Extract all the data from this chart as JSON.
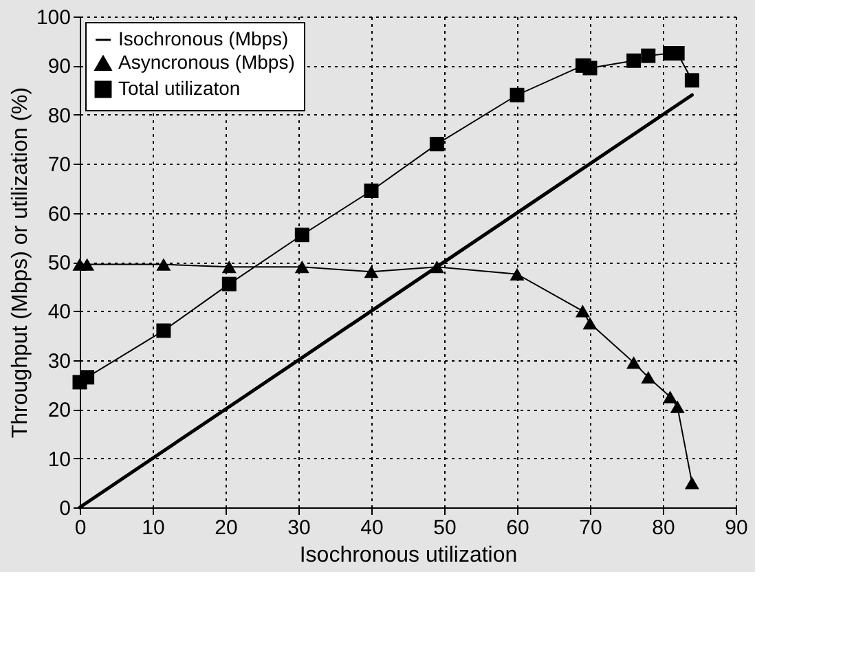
{
  "chart_data": {
    "type": "line",
    "xlabel": "Isochronous utilization",
    "ylabel": "Throughput (Mbps) or utilization (%)",
    "xlim": [
      0,
      90
    ],
    "xticks": [
      0,
      10,
      20,
      30,
      40,
      50,
      60,
      70,
      80,
      90
    ],
    "ylim": [
      0,
      100
    ],
    "yticks": [
      0,
      10,
      20,
      30,
      40,
      50,
      60,
      70,
      80,
      90,
      100
    ],
    "grid": true,
    "legend": "top left",
    "series": [
      {
        "name": "Isochronous (Mbps)",
        "color": "#000000",
        "marker": "none",
        "x": [
          0,
          20,
          40,
          60,
          84
        ],
        "values": [
          0,
          20,
          40,
          60,
          84
        ]
      },
      {
        "name": "Asyncronous (Mbps)",
        "color": "#000000",
        "marker": "triangle",
        "x": [
          0,
          1,
          11.5,
          20.5,
          30.5,
          40,
          49,
          60,
          69,
          70,
          76,
          78,
          81,
          82,
          84
        ],
        "values": [
          49.5,
          49.5,
          49.5,
          49,
          49,
          48,
          49,
          47.5,
          40,
          37.5,
          29.5,
          26.5,
          22.5,
          20.5,
          5
        ]
      },
      {
        "name": "Total utilizaton",
        "color": "#000000",
        "marker": "square",
        "x": [
          0,
          1,
          11.5,
          20.5,
          30.5,
          40,
          49,
          60,
          69,
          70,
          76,
          78,
          81,
          82,
          84
        ],
        "values": [
          25.5,
          26.5,
          36,
          45.5,
          55.5,
          64.5,
          74,
          84,
          90,
          89.5,
          91,
          92,
          92.5,
          92.5,
          87
        ]
      }
    ]
  }
}
